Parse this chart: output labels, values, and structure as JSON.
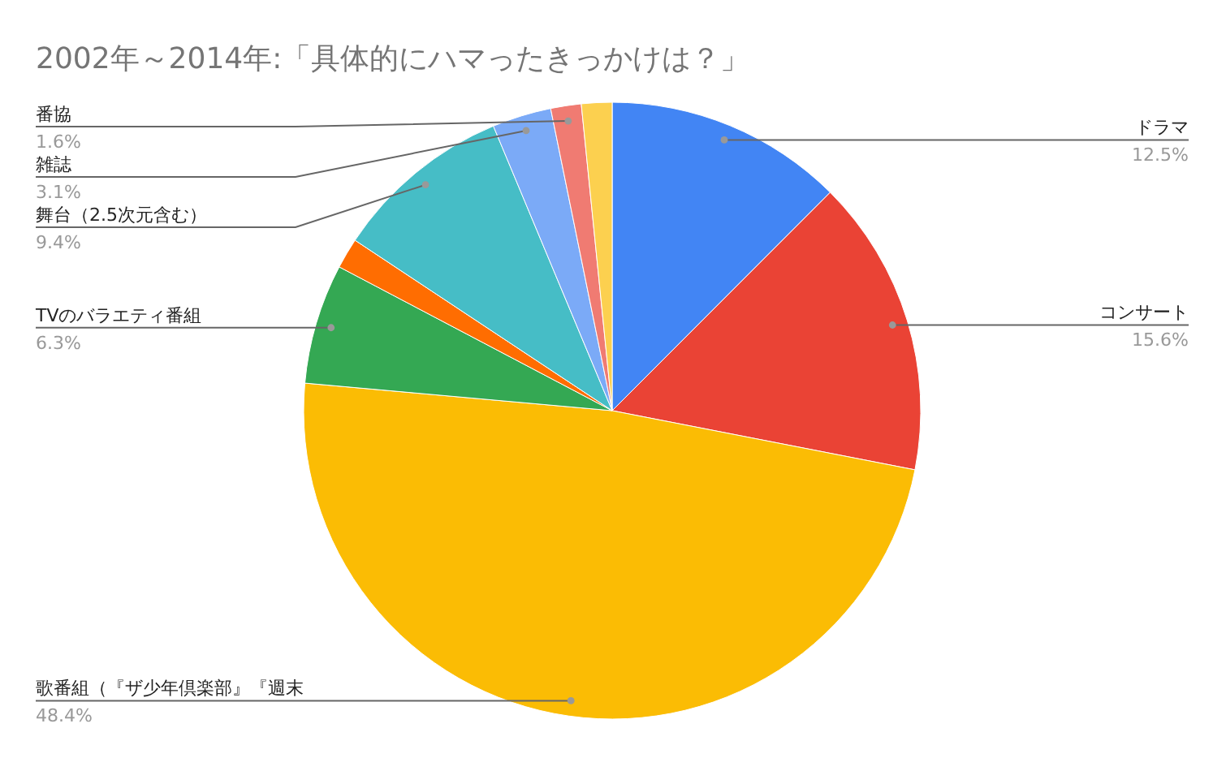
{
  "chart_data": {
    "type": "pie",
    "title": "2002年～2014年:「具体的にハマったきっかけは？」",
    "categories": [
      "ドラマ",
      "コンサート",
      "歌番組（『ザ少年倶楽部』『週末",
      "TVのバラエティ番組",
      null,
      "舞台（2.5次元含む）",
      "雑誌",
      "番協",
      null
    ],
    "values": [
      12.5,
      15.6,
      48.4,
      6.3,
      1.6,
      9.4,
      3.1,
      1.6,
      1.6
    ],
    "value_labels": [
      "12.5%",
      "15.6%",
      "48.4%",
      "6.3%",
      null,
      "9.4%",
      "3.1%",
      "1.6%",
      null
    ],
    "colors": [
      "#4285f4",
      "#ea4335",
      "#fbbc04",
      "#34a853",
      "#ff6d01",
      "#46bdc6",
      "#7baaf7",
      "#f07b72",
      "#fcd04f"
    ],
    "legend": false
  }
}
